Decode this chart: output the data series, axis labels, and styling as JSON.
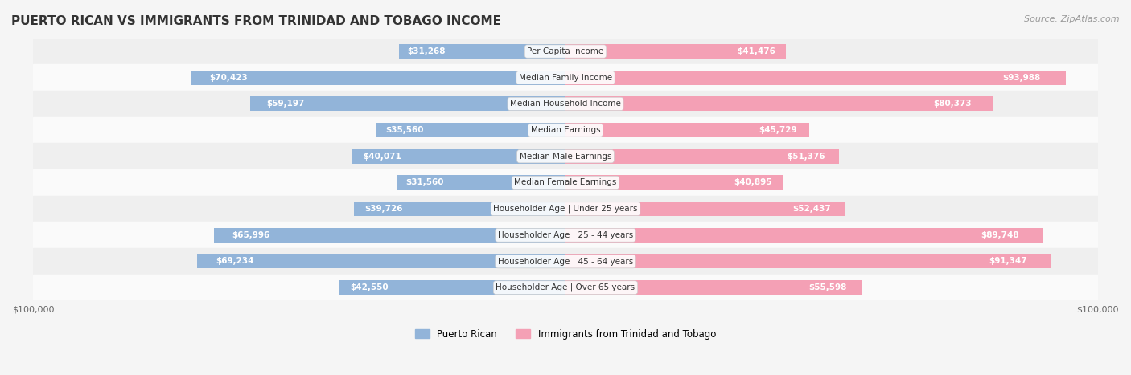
{
  "title": "PUERTO RICAN VS IMMIGRANTS FROM TRINIDAD AND TOBAGO INCOME",
  "source": "Source: ZipAtlas.com",
  "categories": [
    "Per Capita Income",
    "Median Family Income",
    "Median Household Income",
    "Median Earnings",
    "Median Male Earnings",
    "Median Female Earnings",
    "Householder Age | Under 25 years",
    "Householder Age | 25 - 44 years",
    "Householder Age | 45 - 64 years",
    "Householder Age | Over 65 years"
  ],
  "puerto_rican": [
    31268,
    70423,
    59197,
    35560,
    40071,
    31560,
    39726,
    65996,
    69234,
    42550
  ],
  "trinidad": [
    41476,
    93988,
    80373,
    45729,
    51376,
    40895,
    52437,
    89748,
    91347,
    55598
  ],
  "max_val": 100000,
  "blue_color": "#92B4D9",
  "pink_color": "#F4A0B5",
  "blue_label_color": "#5B8DB8",
  "pink_label_color": "#E8607A",
  "bg_color": "#F5F5F5",
  "row_bg": "#EFEFEF",
  "row_bg_alt": "#FAFAFA",
  "title_color": "#333333",
  "label_inside_color": "#FFFFFF",
  "label_outside_color": "#666666",
  "inside_threshold": 15000
}
